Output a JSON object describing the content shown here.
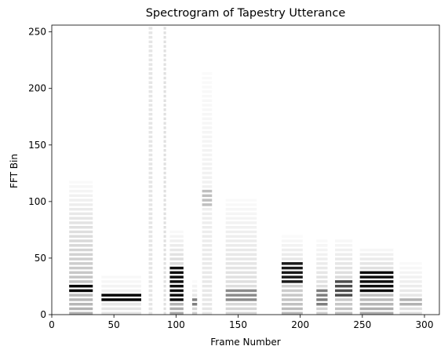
{
  "chart_data": {
    "type": "heatmap",
    "title": "Spectrogram of Tapestry Utterance",
    "xlabel": "Frame Number",
    "ylabel": "FFT Bin",
    "xlim": [
      0,
      312
    ],
    "ylim": [
      0,
      256
    ],
    "xticks": [
      0,
      50,
      100,
      150,
      200,
      250,
      300
    ],
    "yticks": [
      0,
      50,
      100,
      150,
      200,
      250
    ],
    "colormap": "gray_r",
    "grid": false,
    "background_color": "#ffffff",
    "harmonic_spacing_bins": 4,
    "segments": [
      {
        "x": [
          14,
          33
        ],
        "y_max": 120,
        "strength": 0.55,
        "peak_y": [
          18,
          24
        ],
        "peak_strength": 1.0
      },
      {
        "x": [
          40,
          72
        ],
        "y_max": 40,
        "strength": 0.2,
        "peak_y": [
          10,
          16
        ],
        "peak_strength": 1.0
      },
      {
        "x": [
          78,
          81
        ],
        "y_max": 256,
        "strength": 0.1,
        "peak_y": [
          0,
          0
        ],
        "peak_strength": 0
      },
      {
        "x": [
          90,
          92
        ],
        "y_max": 256,
        "strength": 0.12,
        "peak_y": [
          0,
          0
        ],
        "peak_strength": 0
      },
      {
        "x": [
          95,
          106
        ],
        "y_max": 75,
        "strength": 0.6,
        "peak_y": [
          10,
          40
        ],
        "peak_strength": 0.95
      },
      {
        "x": [
          113,
          117
        ],
        "y_max": 30,
        "strength": 0.35,
        "peak_y": [
          5,
          15
        ],
        "peak_strength": 0.5
      },
      {
        "x": [
          121,
          129
        ],
        "y_max": 256,
        "strength": 0.18,
        "peak_y": [
          95,
          110
        ],
        "peak_strength": 0.25
      },
      {
        "x": [
          140,
          165
        ],
        "y_max": 110,
        "strength": 0.3,
        "peak_y": [
          10,
          20
        ],
        "peak_strength": 0.45
      },
      {
        "x": [
          185,
          202
        ],
        "y_max": 70,
        "strength": 0.5,
        "peak_y": [
          25,
          45
        ],
        "peak_strength": 0.9
      },
      {
        "x": [
          213,
          222
        ],
        "y_max": 70,
        "strength": 0.35,
        "peak_y": [
          5,
          20
        ],
        "peak_strength": 0.5
      },
      {
        "x": [
          228,
          242
        ],
        "y_max": 70,
        "strength": 0.45,
        "peak_y": [
          15,
          30
        ],
        "peak_strength": 0.7
      },
      {
        "x": [
          248,
          275
        ],
        "y_max": 60,
        "strength": 0.6,
        "peak_y": [
          18,
          38
        ],
        "peak_strength": 0.95
      },
      {
        "x": [
          280,
          298
        ],
        "y_max": 50,
        "strength": 0.25,
        "peak_y": [
          5,
          15
        ],
        "peak_strength": 0.3
      }
    ]
  }
}
